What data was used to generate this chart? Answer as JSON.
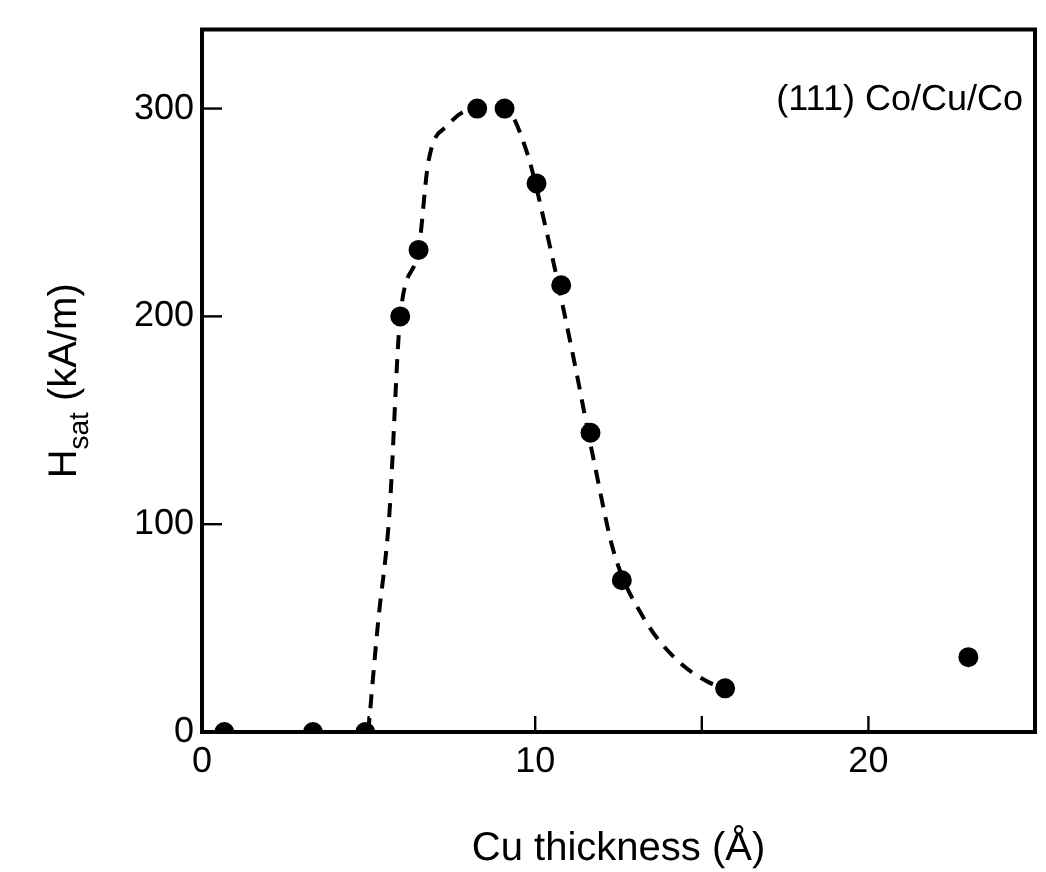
{
  "chart_data": {
    "type": "scatter",
    "xlabel": "Cu thickness (Å)",
    "ylabel": "H$_{sat}$ (kA/m)",
    "annotations": [
      "(111) Co/Cu/Co"
    ],
    "xlim": [
      0,
      25
    ],
    "xticks": [
      0,
      {
        "value": 5,
        "label": null
      },
      10,
      {
        "value": 15,
        "label": null
      },
      20
    ],
    "ylim": [
      0,
      338
    ],
    "yticks": [
      0,
      100,
      200,
      300
    ],
    "grid": false,
    "legend": false,
    "series": [
      {
        "color": "#000000",
        "marker": "circle",
        "x": [
          0.67,
          3.33,
          4.9,
          5.95,
          6.5,
          8.26,
          9.08,
          10.04,
          10.78,
          11.66,
          12.6,
          15.7,
          23.0
        ],
        "values": [
          0,
          0,
          0,
          200,
          232,
          300,
          300,
          264,
          215,
          144,
          73,
          21,
          36
        ]
      },
      {
        "type": "line",
        "color": "#000000",
        "marker": "none",
        "line_style": "dashed",
        "x": [
          4.99,
          5.28,
          5.62,
          5.95,
          6.5,
          6.79,
          7.38,
          8.26,
          9.08,
          9.73,
          10.31,
          11.1,
          11.78,
          12.37,
          13.25,
          14.23,
          15.2,
          15.7
        ],
        "values": [
          0,
          52,
          104,
          200,
          232,
          274,
          292,
          300,
          300,
          280,
          243,
          184,
          129,
          86,
          55,
          35,
          24,
          21
        ]
      }
    ]
  }
}
